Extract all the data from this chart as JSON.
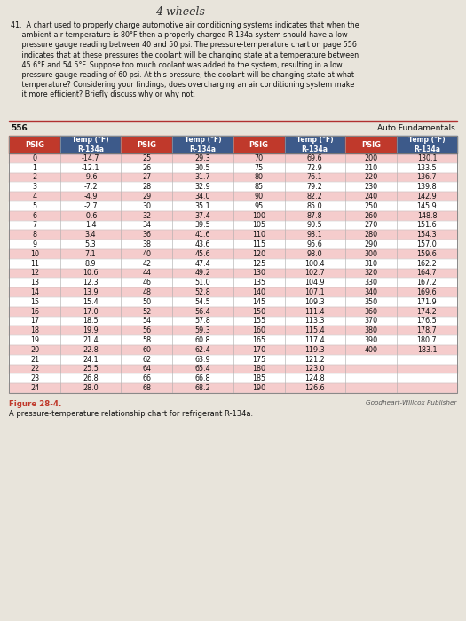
{
  "title_text": "4 wheels",
  "paragraph": "41.  A chart used to properly charge automotive air conditioning systems indicates that when the\n     ambient air temperature is 80°F then a properly charged R-134a system should have a low\n     pressure gauge reading between 40 and 50 psi. The pressure-temperature chart on page 556\n     indicates that at these pressures the coolant will be changing state at a temperature between\n     45.6°F and 54.5°F. Suppose too much coolant was added to the system, resulting in a low\n     pressure gauge reading of 60 psi. At this pressure, the coolant will be changing state at what\n     temperature? Considering your findings, does overcharging an air conditioning system make\n     it more efficient? Briefly discuss why or why not.",
  "page_num": "556",
  "header_right": "Auto Fundamentals",
  "figure_label": "Figure 28-4.",
  "figure_caption": "A pressure-temperature relationship chart for refrigerant R-134a.",
  "publisher": "Goodheart-Willcox Publisher",
  "header_psig_bg": "#c0392b",
  "header_temp_bg": "#3d5a8a",
  "row_alt1": "#f5cccc",
  "row_alt2": "#ffffff",
  "bg_color": "#e8e4db",
  "table_data": [
    [
      0,
      -14.7,
      25,
      29.3,
      70,
      69.6,
      200,
      130.1
    ],
    [
      1,
      -12.1,
      26,
      30.5,
      75,
      72.9,
      210,
      133.5
    ],
    [
      2,
      -9.6,
      27,
      31.7,
      80,
      76.1,
      220,
      136.7
    ],
    [
      3,
      -7.2,
      28,
      32.9,
      85,
      79.2,
      230,
      139.8
    ],
    [
      4,
      -4.9,
      29,
      34.0,
      90,
      82.2,
      240,
      142.9
    ],
    [
      5,
      -2.7,
      30,
      35.1,
      95,
      85.0,
      250,
      145.9
    ],
    [
      6,
      -0.6,
      32,
      37.4,
      100,
      87.8,
      260,
      148.8
    ],
    [
      7,
      1.4,
      34,
      39.5,
      105,
      90.5,
      270,
      151.6
    ],
    [
      8,
      3.4,
      36,
      41.6,
      110,
      93.1,
      280,
      154.3
    ],
    [
      9,
      5.3,
      38,
      43.6,
      115,
      95.6,
      290,
      157.0
    ],
    [
      10,
      7.1,
      40,
      45.6,
      120,
      98.0,
      300,
      159.6
    ],
    [
      11,
      8.9,
      42,
      47.4,
      125,
      100.4,
      310,
      162.2
    ],
    [
      12,
      10.6,
      44,
      49.2,
      130,
      102.7,
      320,
      164.7
    ],
    [
      13,
      12.3,
      46,
      51.0,
      135,
      104.9,
      330,
      167.2
    ],
    [
      14,
      13.9,
      48,
      52.8,
      140,
      107.1,
      340,
      169.6
    ],
    [
      15,
      15.4,
      50,
      54.5,
      145,
      109.3,
      350,
      171.9
    ],
    [
      16,
      17.0,
      52,
      56.4,
      150,
      111.4,
      360,
      174.2
    ],
    [
      17,
      18.5,
      54,
      57.8,
      155,
      113.3,
      370,
      176.5
    ],
    [
      18,
      19.9,
      56,
      59.3,
      160,
      115.4,
      380,
      178.7
    ],
    [
      19,
      21.4,
      58,
      60.8,
      165,
      117.4,
      390,
      180.7
    ],
    [
      20,
      22.8,
      60,
      62.4,
      170,
      119.3,
      400,
      183.1
    ],
    [
      21,
      24.1,
      62,
      63.9,
      175,
      121.2,
      null,
      null
    ],
    [
      22,
      25.5,
      64,
      65.4,
      180,
      123.0,
      null,
      null
    ],
    [
      23,
      26.8,
      66,
      66.8,
      185,
      124.8,
      null,
      null
    ],
    [
      24,
      28.0,
      68,
      68.2,
      190,
      126.6,
      null,
      null
    ]
  ]
}
